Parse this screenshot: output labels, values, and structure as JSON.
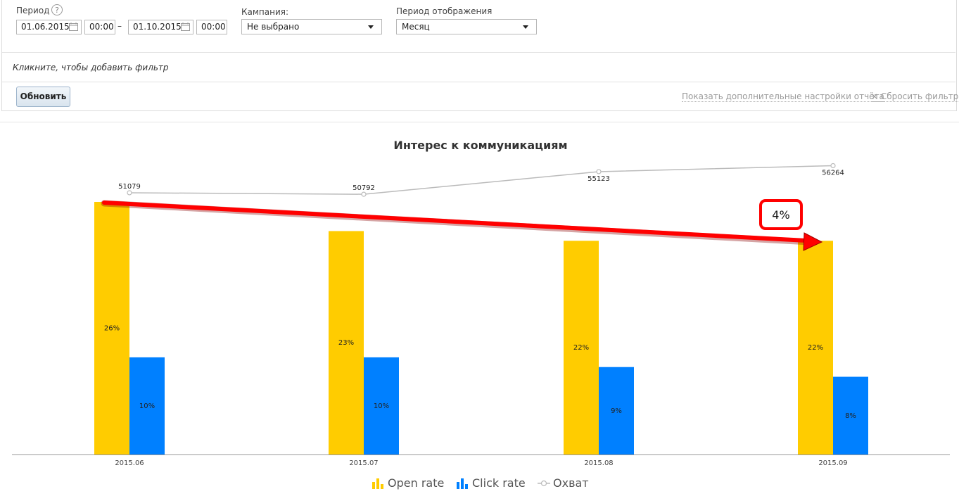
{
  "filters": {
    "period_label": "Период",
    "help_icon": "?",
    "date_from": "01.06.2015",
    "time_from": "00:00",
    "date_to": "01.10.2015",
    "time_to": "00:00",
    "range_dash": "–",
    "campaign_label": "Кампания:",
    "campaign_value": "Не выбрано",
    "display_period_label": "Период отображения",
    "display_period_value": "Месяц",
    "filter_hint": "Кликните, чтобы добавить фильтр",
    "update_button": "Обновить",
    "more_settings_link": "Показать дополнительные настройки отчёта",
    "reset_filter_link": "× Сбросить фильтр"
  },
  "annotation": {
    "label": "4%",
    "arrow_color": "#ff0000"
  },
  "colors": {
    "open_rate": "#ffcc00",
    "click_rate": "#0080ff",
    "reach": "#bbbbbb"
  },
  "chart_data": {
    "type": "bar",
    "title": "Интерес к коммуникациям",
    "categories": [
      "2015.06",
      "2015.07",
      "2015.08",
      "2015.09"
    ],
    "series": [
      {
        "name": "Open rate",
        "type": "bar",
        "values": [
          26,
          23,
          22,
          22
        ],
        "labels": [
          "26%",
          "23%",
          "22%",
          "22%"
        ]
      },
      {
        "name": "Click rate",
        "type": "bar",
        "values": [
          10,
          10,
          9,
          8
        ],
        "labels": [
          "10%",
          "10%",
          "9%",
          "8%"
        ]
      },
      {
        "name": "Охват",
        "type": "line",
        "values": [
          51079,
          50792,
          55123,
          56264
        ]
      }
    ]
  }
}
